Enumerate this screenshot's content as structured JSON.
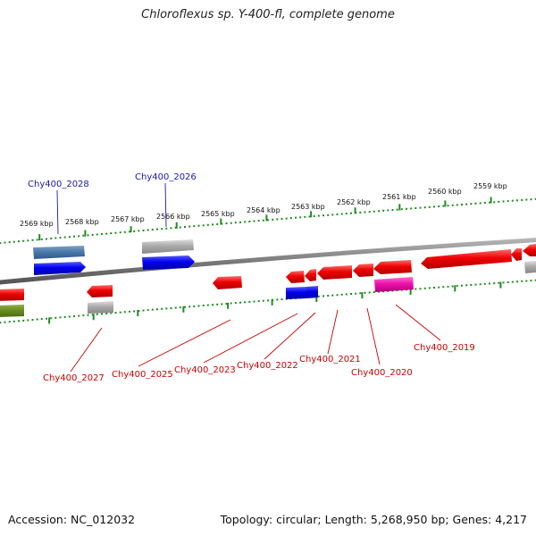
{
  "title": "Chloroflexus sp. Y-400-fl, complete genome",
  "accession": "Accession: NC_012032",
  "footer": "Topology: circular; Length: 5,268,950 bp; Genes: 4,217",
  "colors": {
    "backbone": "#888888",
    "tick": "#228B22",
    "label_forward": "#1a1aaa",
    "label_reverse": "#cc0000"
  },
  "ticks": [
    "2559 kbp",
    "2560 kbp",
    "2561 kbp",
    "2562 kbp",
    "2563 kbp",
    "2564 kbp",
    "2565 kbp",
    "2566 kbp",
    "2567 kbp",
    "2568 kbp",
    "2569 kbp"
  ],
  "gene_labels": [
    {
      "text": "Chy400_2028",
      "strand": "forward"
    },
    {
      "text": "Chy400_2026",
      "strand": "forward"
    },
    {
      "text": "Chy400_2027",
      "strand": "reverse"
    },
    {
      "text": "Chy400_2025",
      "strand": "reverse"
    },
    {
      "text": "Chy400_2023",
      "strand": "reverse"
    },
    {
      "text": "Chy400_2022",
      "strand": "reverse"
    },
    {
      "text": "Chy400_2021",
      "strand": "reverse"
    },
    {
      "text": "Chy400_2020",
      "strand": "reverse"
    },
    {
      "text": "Chy400_2019",
      "strand": "reverse"
    }
  ]
}
